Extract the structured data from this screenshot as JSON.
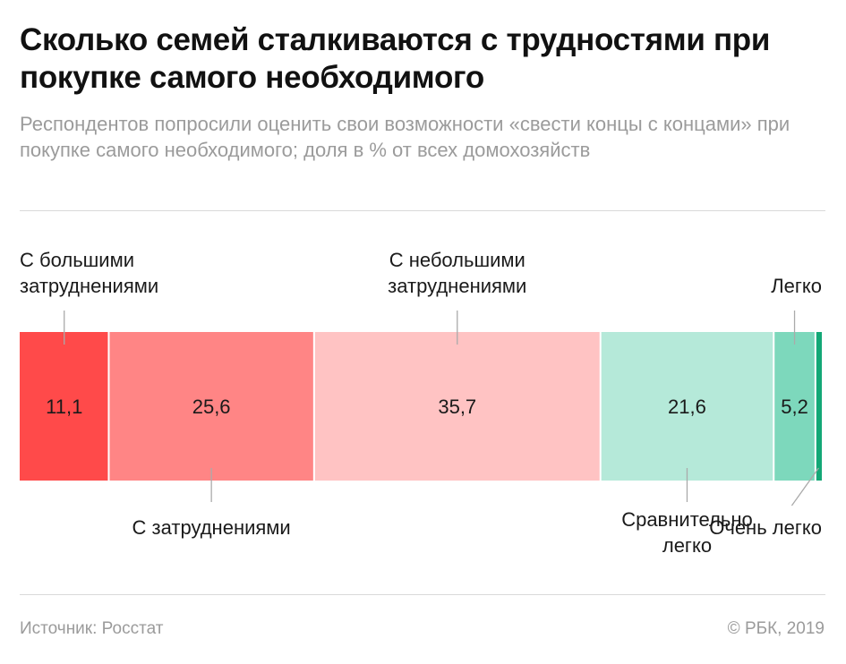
{
  "header": {
    "title": "Сколько семей сталкиваются с трудностями при покупке самого необходимого",
    "subtitle": "Респондентов попросили оценить свои возможности «свести концы с концами» при покупке самого необходимого; доля в % от всех домохозяйств"
  },
  "chart_data": {
    "type": "bar",
    "orientation": "horizontal-stacked",
    "categories": [
      "С большими затруднениями",
      "С затруднениями",
      "С небольшими затруднениями",
      "Сравнительно легко",
      "Легко",
      "Очень легко"
    ],
    "values": [
      11.1,
      25.6,
      35.7,
      21.6,
      5.2,
      0.8
    ],
    "value_labels": [
      "11,1",
      "25,6",
      "35,7",
      "21,6",
      "5,2",
      ""
    ],
    "colors": [
      "#ff4a4a",
      "#ff8585",
      "#ffc3c3",
      "#b5e9d9",
      "#7dd8bc",
      "#13a876"
    ],
    "label_lines": [
      [
        "С большими",
        "затруднениями"
      ],
      [
        "С затруднениями"
      ],
      [
        "С небольшими",
        "затруднениями"
      ],
      [
        "Сравнительно",
        "легко"
      ],
      [
        "Легко"
      ],
      [
        "Очень легко"
      ]
    ],
    "label_placement": [
      "above",
      "below",
      "above",
      "below",
      "above",
      "below"
    ]
  },
  "footer": {
    "source": "Источник: Росстат",
    "copyright": "© РБК, 2019"
  }
}
